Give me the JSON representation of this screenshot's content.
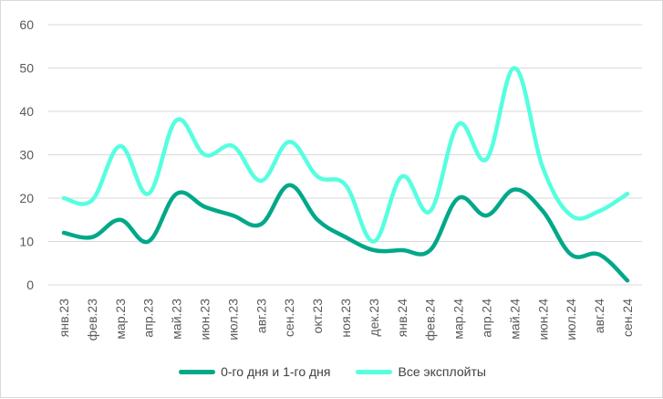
{
  "chart_data": {
    "type": "line",
    "categories": [
      "янв.23",
      "фев.23",
      "мар.23",
      "апр.23",
      "май.23",
      "июн.23",
      "июл.23",
      "авг.23",
      "сен.23",
      "окт.23",
      "ноя.23",
      "дек.23",
      "янв.24",
      "фев.24",
      "мар.24",
      "апр.24",
      "май.24",
      "июн.24",
      "июл.24",
      "авг.24",
      "сен.24"
    ],
    "ylim": [
      0,
      60
    ],
    "yticks": [
      "0",
      "10",
      "20",
      "30",
      "40",
      "50",
      "60"
    ],
    "grid": true,
    "smooth": true,
    "legend_position": "bottom",
    "series": [
      {
        "name": "0-го дня и 1-го дня",
        "color": "#00A88A",
        "values": [
          12,
          11,
          15,
          10,
          21,
          18,
          16,
          14,
          23,
          15,
          11,
          8,
          8,
          8,
          20,
          16,
          22,
          17,
          7,
          7,
          1
        ]
      },
      {
        "name": "Все эксплойты",
        "color": "#55FFE0",
        "values": [
          20,
          19.5,
          32,
          21,
          38,
          30,
          32,
          24,
          33,
          25,
          23,
          10,
          25,
          17,
          37,
          29,
          50,
          27,
          16,
          17,
          21
        ]
      }
    ]
  }
}
